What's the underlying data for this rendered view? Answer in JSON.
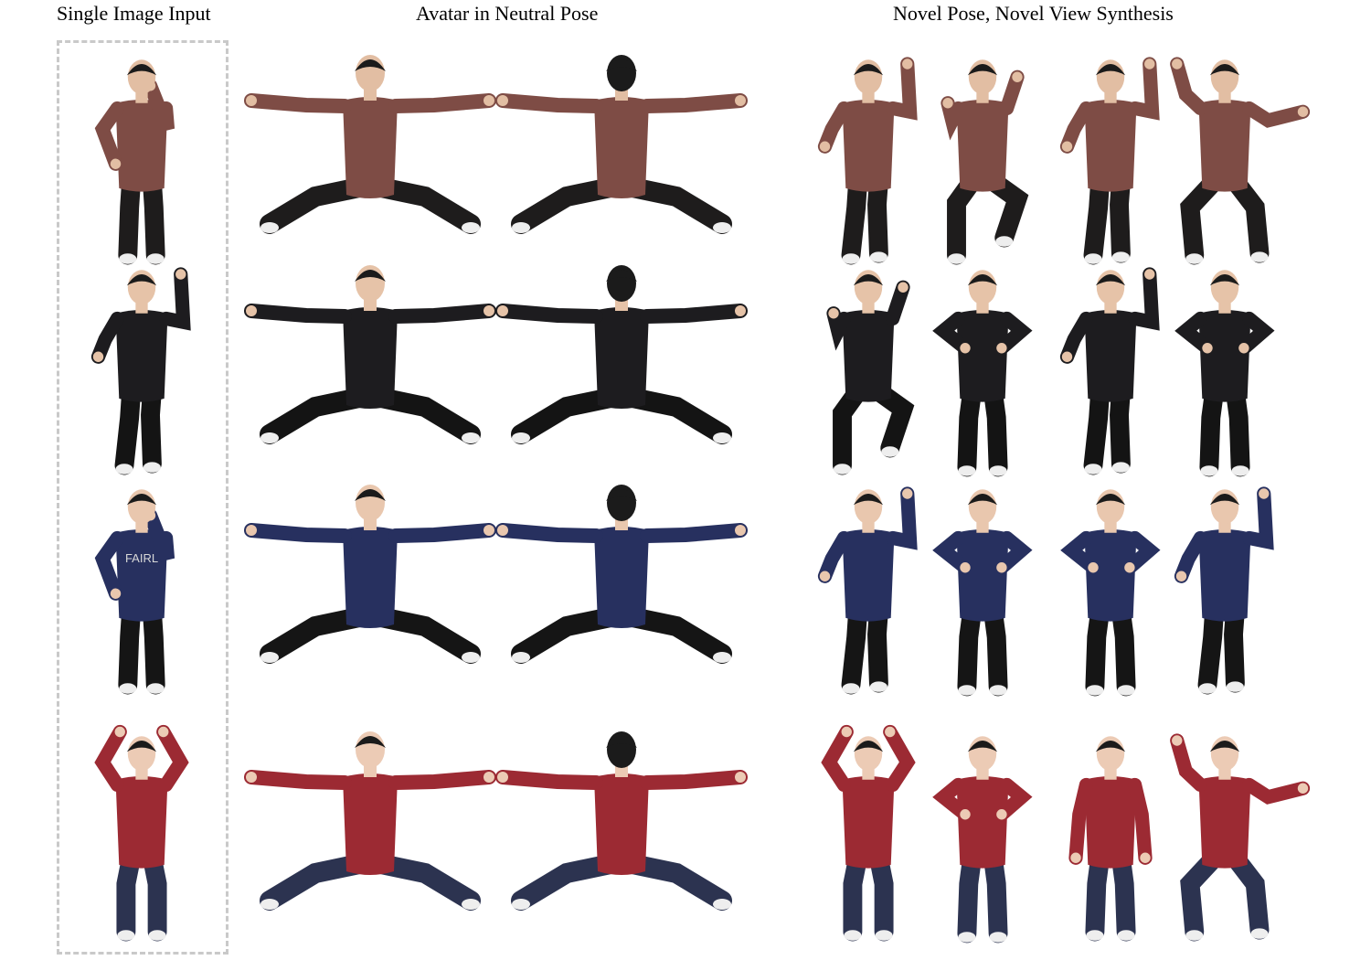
{
  "headers": {
    "input": "Single Image Input",
    "neutral": "Avatar in Neutral Pose",
    "novel": "Novel Pose, Novel View Synthesis"
  },
  "rows": [
    {
      "top": "#7e4c45",
      "bottom": "#1e1c1c",
      "skin": "#e2bea3"
    },
    {
      "top": "#1d1c1f",
      "bottom": "#141414",
      "skin": "#e6c3a8"
    },
    {
      "top": "#27305f",
      "bottom": "#151515",
      "skin": "#e9c7ae"
    },
    {
      "top": "#9c2a33",
      "bottom": "#2c3350",
      "skin": "#eccbb5"
    }
  ],
  "shirt_prints": [
    "",
    "",
    "FAIRL",
    ""
  ],
  "colors": {
    "box_border": "#c9c9c9",
    "text": "#000000",
    "background": "#ffffff"
  }
}
